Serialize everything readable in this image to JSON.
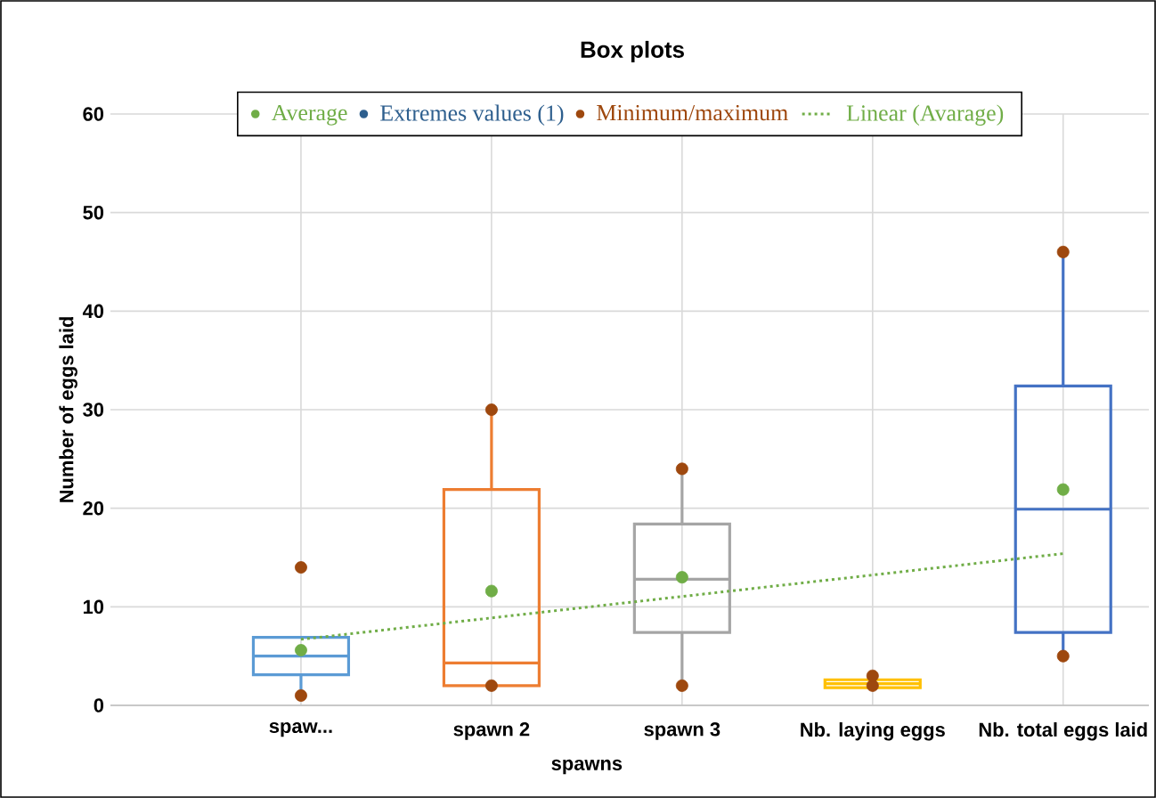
{
  "chart_data": {
    "type": "box",
    "title": "Box plots",
    "ylabel": "Number of eggs laid",
    "xlabel": "spawns",
    "categories": [
      "spaw...",
      "spawn 2",
      "spawn 3",
      "Nb. laying eggs",
      "Nb. total eggs laid"
    ],
    "ylim": [
      0,
      60
    ],
    "yticks": [
      0,
      10,
      20,
      30,
      40,
      50,
      60
    ],
    "grid": true,
    "legend": "top",
    "colors": [
      "#5b9bd5",
      "#ed7d31",
      "#a5a5a5",
      "#ffc000",
      "#4472c4"
    ],
    "boxes": [
      {
        "low": 1,
        "q1": 3.1,
        "median": 5,
        "q3": 6.9,
        "high": 7
      },
      {
        "low": 2,
        "q1": 2,
        "median": 4.3,
        "q3": 21.9,
        "high": 30
      },
      {
        "low": 2,
        "q1": 7.4,
        "median": 12.8,
        "q3": 18.4,
        "high": 24
      },
      {
        "low": 2,
        "q1": 1.8,
        "median": 2.2,
        "q3": 2.6,
        "high": 3
      },
      {
        "low": 5,
        "q1": 7.4,
        "median": 19.9,
        "q3": 32.4,
        "high": 46
      }
    ],
    "series": [
      {
        "name": "Average",
        "type": "scatter",
        "marker": "circle",
        "color": "#70ad47",
        "x": [
          "spaw...",
          "spawn 2",
          "spawn 3",
          "Nb. laying eggs",
          "Nb. total eggs laid"
        ],
        "values": [
          5.6,
          11.6,
          13,
          null,
          21.9
        ]
      },
      {
        "name": "Extremes values (1)",
        "type": "scatter",
        "marker": "circle",
        "color": "#2e5f8e",
        "values": [
          null,
          null,
          null,
          null,
          null
        ]
      },
      {
        "name": "Minimum/maximum",
        "type": "scatter",
        "marker": "circle",
        "color": "#9e480e",
        "x": [
          "spaw...",
          "spaw...",
          "spawn 2",
          "spawn 2",
          "spawn 3",
          "spawn 3",
          "Nb. laying eggs",
          "Nb. laying eggs",
          "Nb. total eggs laid",
          "Nb. total eggs laid"
        ],
        "values": [
          1,
          14,
          2,
          30,
          2,
          24,
          2,
          3,
          5,
          46
        ]
      },
      {
        "name": "Linear (Avarage)",
        "type": "line",
        "color": "#70ad47",
        "line_style": "dotted",
        "marker": "none",
        "x": [
          "spaw...",
          "Nb. total eggs laid"
        ],
        "values": [
          6.7,
          15.4
        ]
      }
    ]
  }
}
